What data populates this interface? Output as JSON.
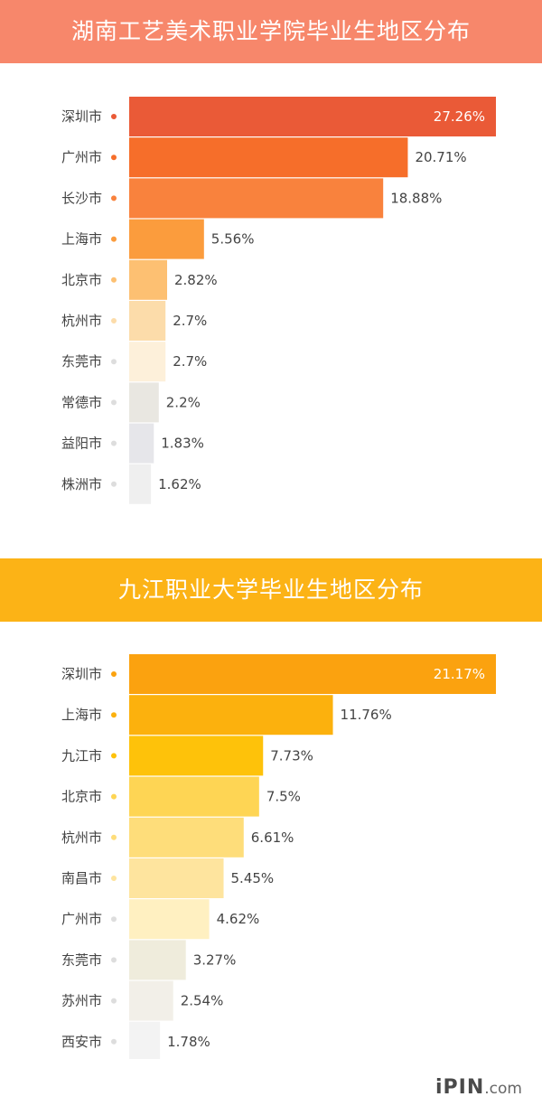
{
  "chart_data": [
    {
      "type": "bar",
      "orientation": "horizontal",
      "title": "湖南工艺美术职业学院毕业生地区分布",
      "categories": [
        "深圳市",
        "广州市",
        "长沙市",
        "上海市",
        "北京市",
        "杭州市",
        "东莞市",
        "常德市",
        "益阳市",
        "株洲市"
      ],
      "values": [
        27.26,
        20.71,
        18.88,
        5.56,
        2.82,
        2.7,
        2.7,
        2.2,
        1.83,
        1.62
      ],
      "labels": [
        "27.26%",
        "20.71%",
        "18.88%",
        "5.56%",
        "2.82%",
        "2.7%",
        "2.7%",
        "2.2%",
        "1.83%",
        "1.62%"
      ],
      "colors": [
        "#ea5a37",
        "#f66e2a",
        "#f9823d",
        "#fb9c3d",
        "#fdc072",
        "#fcdcaa",
        "#fdf0da",
        "#e9e7e1",
        "#e6e6ea",
        "#efefef"
      ],
      "xlim": [
        0,
        27.26
      ],
      "grid": false
    },
    {
      "type": "bar",
      "orientation": "horizontal",
      "title": "九江职业大学毕业生地区分布",
      "categories": [
        "深圳市",
        "上海市",
        "九江市",
        "北京市",
        "杭州市",
        "南昌市",
        "广州市",
        "东莞市",
        "苏州市",
        "西安市"
      ],
      "values": [
        21.17,
        11.76,
        7.73,
        7.5,
        6.61,
        5.45,
        4.62,
        3.27,
        2.54,
        1.78
      ],
      "labels": [
        "21.17%",
        "11.76%",
        "7.73%",
        "7.5%",
        "6.61%",
        "5.45%",
        "4.62%",
        "3.27%",
        "2.54%",
        "1.78%"
      ],
      "colors": [
        "#fba20f",
        "#fcb10d",
        "#fec20a",
        "#fed554",
        "#fedd7a",
        "#fee49e",
        "#fff0c1",
        "#efecdc",
        "#f2efe8",
        "#f3f3f3"
      ],
      "xlim": [
        0,
        21.17
      ],
      "grid": false
    }
  ],
  "logo": {
    "brand": "iPIN",
    "domain": ".com"
  }
}
